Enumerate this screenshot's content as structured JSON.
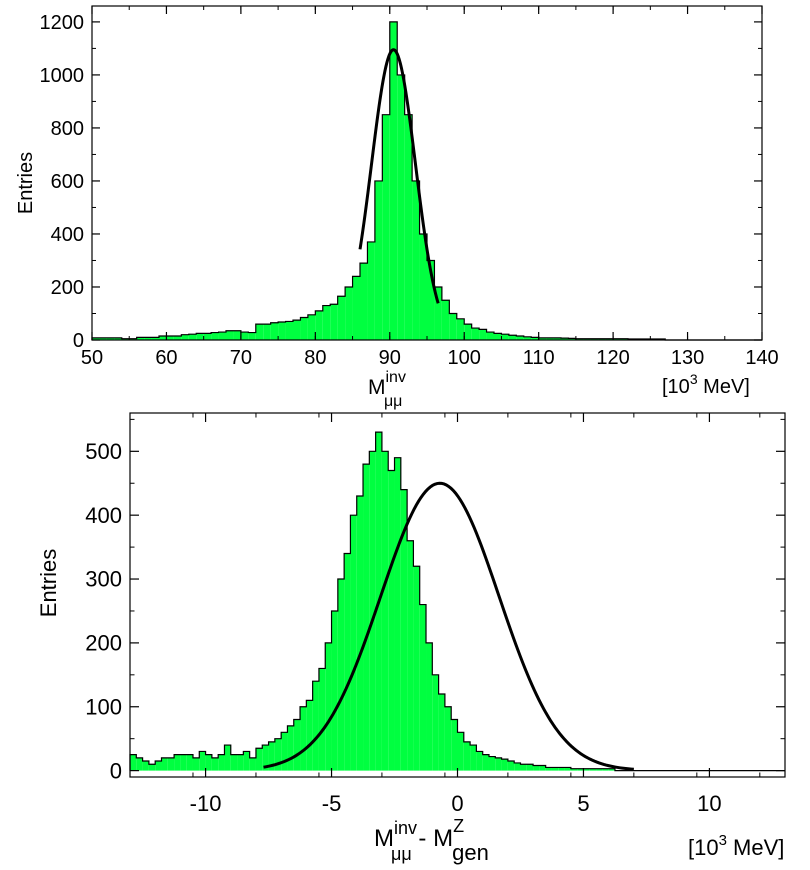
{
  "chart_data": [
    {
      "type": "bar",
      "ylabel": "Entries",
      "xlabel_main": "M",
      "xlabel_sup": "inv",
      "xlabel_sub": "μμ",
      "unit_label": "[10",
      "unit_sup": "3",
      "unit_tail": " MeV]",
      "xlim": [
        50,
        140
      ],
      "ylim": [
        0,
        1260
      ],
      "xticks": [
        "50",
        "60",
        "70",
        "80",
        "90",
        "100",
        "110",
        "120",
        "130",
        "140"
      ],
      "xtick_values": [
        50,
        60,
        70,
        80,
        90,
        100,
        110,
        120,
        130,
        140
      ],
      "yticks": [
        "0",
        "200",
        "400",
        "600",
        "800",
        "1000",
        "1200"
      ],
      "ytick_values": [
        0,
        200,
        400,
        600,
        800,
        1000,
        1200
      ],
      "fill_color": "#00ff40",
      "bin_edges_start": 50,
      "bin_width": 1,
      "values": [
        8,
        8,
        8,
        8,
        5,
        5,
        10,
        10,
        10,
        15,
        15,
        15,
        20,
        22,
        25,
        25,
        28,
        30,
        35,
        35,
        30,
        28,
        60,
        60,
        65,
        68,
        70,
        75,
        85,
        95,
        110,
        130,
        135,
        165,
        200,
        240,
        290,
        370,
        600,
        850,
        1200,
        1000,
        850,
        600,
        400,
        300,
        200,
        150,
        100,
        80,
        60,
        45,
        40,
        30,
        25,
        22,
        18,
        15,
        12,
        10,
        8,
        8,
        8,
        7,
        6,
        5,
        5,
        5,
        5,
        5,
        5,
        5,
        4,
        4,
        4,
        4,
        4,
        0,
        0,
        0,
        0,
        0,
        0,
        0,
        0,
        0,
        0,
        0,
        0,
        0
      ],
      "fit": {
        "mean": 90.5,
        "sigma": 2.95,
        "amplitude": 1095,
        "xmin": 86,
        "xmax": 96.5
      }
    },
    {
      "type": "bar",
      "ylabel": "Entries",
      "xlabel_main": "M",
      "xlabel_sup": "inv",
      "xlabel_sub": "μμ",
      "xlabel_minus": " - M",
      "xlabel_sup2": "Z",
      "xlabel_sub2": "gen",
      "unit_label": "[10",
      "unit_sup": "3",
      "unit_tail": " MeV]",
      "xlim": [
        -13,
        13
      ],
      "ylim": [
        -10,
        560
      ],
      "xticks": [
        "-10",
        "-5",
        "0",
        "5",
        "10"
      ],
      "xtick_values": [
        -10,
        -5,
        0,
        5,
        10
      ],
      "yticks": [
        "0",
        "100",
        "200",
        "300",
        "400",
        "500"
      ],
      "ytick_values": [
        0,
        100,
        200,
        300,
        400,
        500
      ],
      "fill_color": "#00ff40",
      "bin_edges_start": -13,
      "bin_width": 0.25,
      "values": [
        25,
        20,
        15,
        10,
        15,
        20,
        20,
        25,
        25,
        25,
        20,
        30,
        25,
        20,
        25,
        40,
        25,
        25,
        30,
        20,
        35,
        40,
        45,
        50,
        60,
        70,
        80,
        100,
        110,
        140,
        160,
        200,
        250,
        300,
        340,
        400,
        430,
        480,
        500,
        530,
        500,
        470,
        490,
        440,
        360,
        320,
        260,
        200,
        150,
        120,
        100,
        80,
        60,
        45,
        40,
        30,
        25,
        22,
        20,
        18,
        15,
        12,
        10,
        10,
        8,
        8,
        5,
        5,
        5,
        5,
        3,
        3,
        3,
        3,
        3,
        3,
        3,
        0,
        0,
        0,
        0,
        0,
        0,
        0,
        0,
        0,
        0,
        0,
        0,
        0,
        0,
        0,
        0,
        0,
        0,
        0,
        0,
        0,
        0,
        0,
        0,
        0,
        0,
        0
      ],
      "fit": {
        "mean": -0.7,
        "sigma": 2.35,
        "amplitude": 450,
        "xmin": -7.7,
        "xmax": 7.0
      }
    }
  ]
}
